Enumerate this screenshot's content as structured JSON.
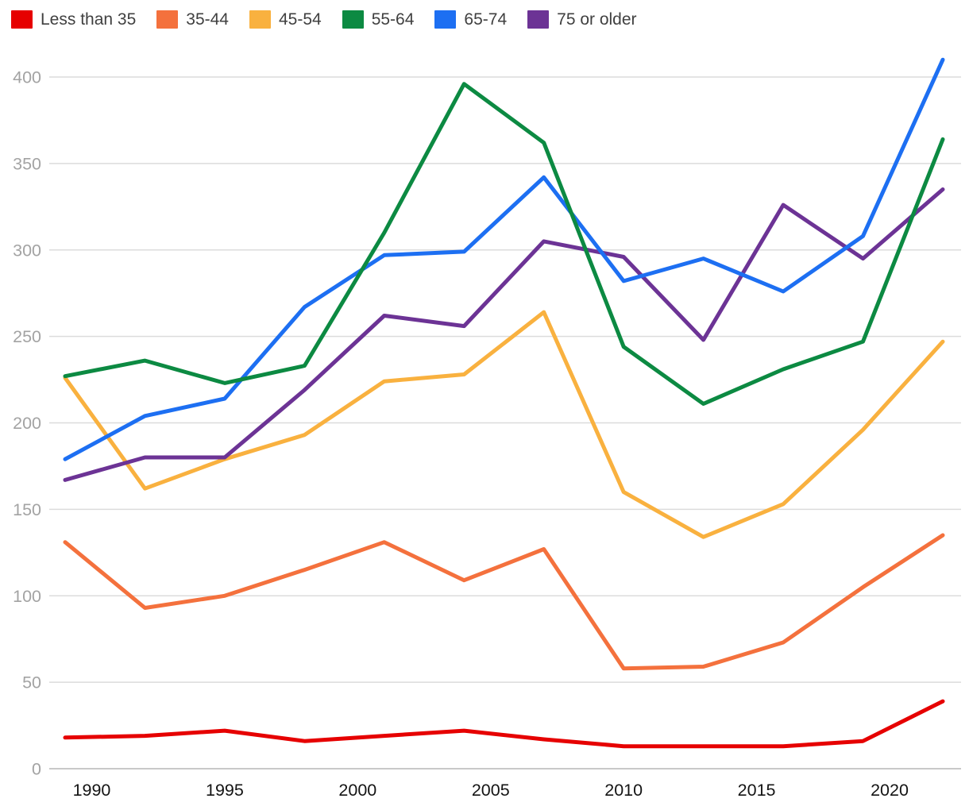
{
  "chart_data": {
    "type": "line",
    "x": [
      1989,
      1992,
      1995,
      1998,
      2001,
      2004,
      2007,
      2010,
      2013,
      2016,
      2019,
      2022
    ],
    "series": [
      {
        "name": "Less than 35",
        "color": "#e60000",
        "values": [
          18,
          19,
          22,
          16,
          19,
          22,
          17,
          13,
          13,
          13,
          16,
          39
        ]
      },
      {
        "name": "35-44",
        "color": "#f4713d",
        "values": [
          131,
          93,
          100,
          115,
          131,
          109,
          127,
          58,
          59,
          73,
          105,
          135
        ]
      },
      {
        "name": "45-54",
        "color": "#f9b13f",
        "values": [
          226,
          162,
          179,
          193,
          224,
          228,
          264,
          160,
          134,
          153,
          196,
          247
        ]
      },
      {
        "name": "55-64",
        "color": "#0c8a42",
        "values": [
          227,
          236,
          223,
          233,
          310,
          396,
          362,
          244,
          211,
          231,
          247,
          364
        ]
      },
      {
        "name": "65-74",
        "color": "#1d6ff2",
        "values": [
          179,
          204,
          214,
          267,
          297,
          299,
          342,
          282,
          295,
          276,
          308,
          410
        ]
      },
      {
        "name": "75 or older",
        "color": "#6c3395",
        "values": [
          167,
          180,
          180,
          219,
          262,
          256,
          305,
          296,
          248,
          326,
          295,
          335
        ]
      }
    ],
    "title": "",
    "xlabel": "",
    "ylabel": "",
    "x_tick_labels": [
      "1990",
      "1995",
      "2000",
      "2005",
      "2010",
      "2015",
      "2020"
    ],
    "y_tick_labels": [
      "0",
      "50",
      "100",
      "150",
      "200",
      "250",
      "300",
      "350",
      "400"
    ],
    "y_ticks": [
      0,
      50,
      100,
      150,
      200,
      250,
      300,
      350,
      400
    ],
    "x_ticks": [
      1990,
      1995,
      2000,
      2005,
      2010,
      2015,
      2020
    ],
    "ylim": [
      0,
      400
    ],
    "xlim": [
      1989,
      2022
    ],
    "grid": "horizontal",
    "legend_position": "top-left",
    "gridline_color": "#dcdcdc",
    "zero_line_color": "#c9c9c9",
    "y_label_color": "#a3a3a3",
    "x_label_color": "#141414",
    "legend_text_color": "#404040"
  }
}
